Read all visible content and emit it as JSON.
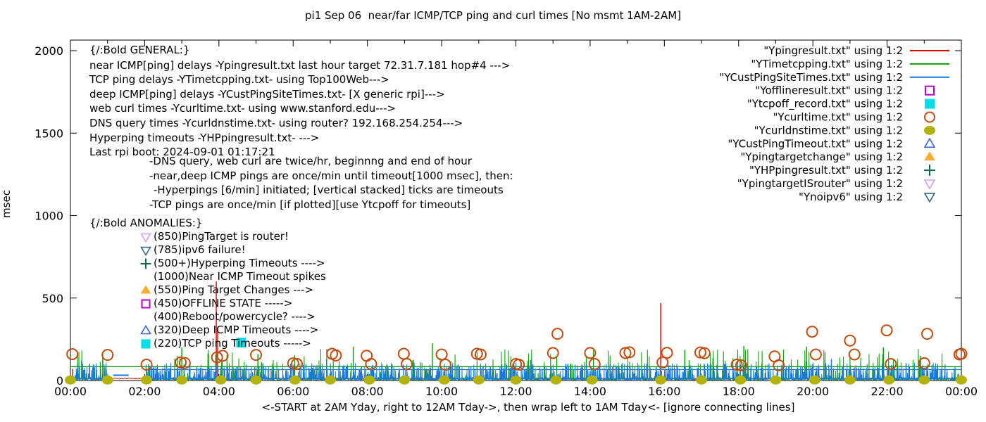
{
  "title": "pi1 Sep 06  near/far ICMP/TCP ping and curl times [No msmt 1AM-2AM]",
  "axes": {
    "ylabel": "msec",
    "xlabel": "<-START at 2AM Yday, right to 12AM Tday->, then wrap left to 1AM Tday<- [ignore connecting lines]",
    "yticks": [
      "0",
      "500",
      "1000",
      "1500",
      "2000"
    ],
    "xticks": [
      "00:00",
      "02:00",
      "04:00",
      "06:00",
      "08:00",
      "10:00",
      "12:00",
      "14:00",
      "16:00",
      "18:00",
      "20:00",
      "22:00",
      "00:00"
    ]
  },
  "legend": {
    "items": [
      {
        "label": "\"Ypingresult.txt\" using 1:2",
        "sample": "line",
        "color": "#e00000"
      },
      {
        "label": "\"YTimetcpping.txt\" using 1:2",
        "sample": "line",
        "color": "#00a000"
      },
      {
        "label": "\"YCustPingSiteTimes.txt\" using 1:2",
        "sample": "line",
        "color": "#1778dd"
      },
      {
        "label": "\"Yofflineresult.txt\" using 1:2",
        "sample": "open-square",
        "color": "#bb00cc"
      },
      {
        "label": "\"Ytcpoff_record.txt\" using 1:2",
        "sample": "filled-square",
        "color": "#00dfe8"
      },
      {
        "label": "\"Ycurltime.txt\" using 1:2",
        "sample": "open-circle",
        "color": "#c24c0e"
      },
      {
        "label": "\"Ycurldnstime.txt\" using 1:2",
        "sample": "filled-dot",
        "color": "#b2b20a"
      },
      {
        "label": "\"YCustPingTimeout.txt\" using 1:2",
        "sample": "open-triangle-up",
        "color": "#3c64c8"
      },
      {
        "label": "\"Ypingtargetchange\" using 1:2",
        "sample": "filled-triangle-up",
        "color": "#fcae32"
      },
      {
        "label": "\"YHPpingresult.txt\" using 1:2",
        "sample": "plus",
        "color": "#0c6b4c"
      },
      {
        "label": "\"YpingtargetISrouter\" using 1:2",
        "sample": "open-triangle-down",
        "color": "#cba2f2"
      },
      {
        "label": "\"Ynoipv6\" using 1:2",
        "sample": "open-triangle-down",
        "color": "#32657a"
      }
    ]
  },
  "general_block": {
    "heading": "{/:Bold GENERAL:}",
    "lines": [
      "near ICMP[ping] delays -Ypingresult.txt last hour target 72.31.7.181 hop#4 --->",
      "TCP ping delays -YTimetcpping.txt- using Top100Web--->",
      "deep ICMP[ping] delays -YCustPingSiteTimes.txt- [X generic rpi]--->",
      "web curl times -Ycurltime.txt- using www.stanford.edu--->",
      "DNS query times -Ycurldnstime.txt- using router? 192.168.254.254--->",
      "Hyperping timeouts -YHPpingresult.txt- --->",
      "Last rpi boot: 2024-09-01 01:17:21"
    ],
    "indented_lines": [
      "-DNS query, web curl are twice/hr, beginnng and end of hour",
      "-near,deep ICMP pings are once/min until timeout[1000 msec], then:",
      "-Hyperpings [6/min] initiated; [vertical stacked] ticks are timeouts",
      "-TCP pings are once/min [if plotted][use Ytcpoff for timeouts]"
    ]
  },
  "anomalies_block": {
    "heading": "{/:Bold ANOMALIES:}",
    "rows": [
      {
        "marker": "open-triangle-down",
        "color": "#cba2f2",
        "label": "(850)PingTarget is router!"
      },
      {
        "marker": "open-triangle-down",
        "color": "#32657a",
        "label": "(785)ipv6 failure!"
      },
      {
        "marker": "plus",
        "color": "#0c6b4c",
        "label": "(500+)Hyperping Timeouts ---->"
      },
      {
        "marker": "none",
        "color": "",
        "label": "(1000)Near ICMP Timeout spikes"
      },
      {
        "marker": "filled-triangle-up",
        "color": "#fcae32",
        "label": "(550)Ping Target Changes --->"
      },
      {
        "marker": "open-square",
        "color": "#bb00cc",
        "label": "(450)OFFLINE STATE ----->"
      },
      {
        "marker": "none",
        "color": "",
        "label": "(400)Reboot/powercycle? ---->"
      },
      {
        "marker": "open-triangle-up",
        "color": "#3c64c8",
        "label": "(320)Deep ICMP Timeouts ---->"
      },
      {
        "marker": "filled-square",
        "color": "#00dfe8",
        "label": "(220)TCP ping Timeouts ----->"
      }
    ]
  },
  "chart_data": {
    "type": "line+scatter",
    "x_unit": "hours",
    "x_range": [
      0,
      24
    ],
    "y_range": [
      0,
      2000
    ],
    "grid": false,
    "legend_position": "top-right",
    "no_measurement_gap_hours": [
      1.03,
      2.02
    ],
    "series": [
      {
        "name": "Ypingresult.txt",
        "style": "line",
        "color": "#e00000",
        "base_level_msec": 10,
        "noise_msec": 5,
        "spike_chance": 0.0,
        "spike_max_msec": 0,
        "segments": [
          [
            0,
            24
          ]
        ],
        "spikes": [
          [
            0.06,
            70
          ],
          [
            3.93,
            600
          ],
          [
            3.965,
            310
          ],
          [
            15.9,
            470
          ]
        ]
      },
      {
        "name": "YTimetcpping.txt",
        "style": "line",
        "color": "#00a000",
        "base_level_msec": 3,
        "noise_msec": 9,
        "spike_chance": 0.13,
        "spike_max_msec": 175,
        "segments": [
          [
            0,
            1.03
          ],
          [
            2.02,
            24
          ]
        ],
        "level_line": {
          "msec": 84,
          "span": [
            0,
            24
          ]
        },
        "spikes": [
          [
            0.87,
            170
          ],
          [
            3.0,
            200
          ],
          [
            5.05,
            160
          ],
          [
            7.62,
            205
          ],
          [
            9.75,
            225
          ],
          [
            13.1,
            150
          ],
          [
            16.55,
            185
          ],
          [
            18.14,
            210
          ],
          [
            19.83,
            205
          ],
          [
            21.9,
            200
          ],
          [
            22.9,
            150
          ]
        ]
      },
      {
        "name": "YCustPingSiteTimes.txt",
        "style": "line",
        "color": "#1778dd",
        "base_level_msec": 4,
        "noise_msec": 12,
        "spike_chance": 0.38,
        "spike_max_msec": 90,
        "segments": [
          [
            0,
            1.03
          ],
          [
            2.02,
            24
          ]
        ],
        "level_line": {
          "msec": 66,
          "span": [
            2.02,
            24
          ]
        },
        "gap_flat_segment": {
          "msec": 32,
          "span": [
            1.15,
            1.57
          ]
        },
        "spikes": [
          [
            0.3,
            120
          ],
          [
            6.9,
            130
          ],
          [
            12.4,
            125
          ],
          [
            20.5,
            130
          ]
        ]
      }
    ],
    "scatter": [
      {
        "name": "Ycurltime.txt",
        "marker": "open-circle",
        "color": "#c24c0e",
        "points": [
          [
            0.05,
            160
          ],
          [
            1.0,
            155
          ],
          [
            2.05,
            96
          ],
          [
            2.97,
            110
          ],
          [
            3.08,
            106
          ],
          [
            3.95,
            140
          ],
          [
            4.1,
            150
          ],
          [
            5.0,
            155
          ],
          [
            6.0,
            104
          ],
          [
            6.1,
            100
          ],
          [
            7.05,
            162
          ],
          [
            7.15,
            152
          ],
          [
            7.98,
            150
          ],
          [
            8.1,
            100
          ],
          [
            8.98,
            162
          ],
          [
            9.06,
            100
          ],
          [
            10.0,
            158
          ],
          [
            10.1,
            96
          ],
          [
            10.95,
            162
          ],
          [
            11.05,
            158
          ],
          [
            12.0,
            100
          ],
          [
            12.08,
            96
          ],
          [
            13.0,
            167
          ],
          [
            13.12,
            283
          ],
          [
            14.0,
            167
          ],
          [
            14.12,
            100
          ],
          [
            14.95,
            167
          ],
          [
            15.06,
            171
          ],
          [
            15.95,
            110
          ],
          [
            16.07,
            168
          ],
          [
            16.97,
            170
          ],
          [
            17.08,
            166
          ],
          [
            17.95,
            96
          ],
          [
            18.07,
            92
          ],
          [
            18.97,
            146
          ],
          [
            19.08,
            92
          ],
          [
            19.98,
            296
          ],
          [
            20.08,
            158
          ],
          [
            21.0,
            242
          ],
          [
            21.12,
            158
          ],
          [
            21.99,
            304
          ],
          [
            22.1,
            100
          ],
          [
            23.0,
            105
          ],
          [
            23.08,
            283
          ],
          [
            23.95,
            158
          ],
          [
            24.0,
            162
          ]
        ]
      },
      {
        "name": "Ycurldnstime.txt",
        "marker": "filled-dot",
        "color": "#b2b20a",
        "points": [
          [
            0,
            3
          ],
          [
            1,
            3
          ],
          [
            2.05,
            3
          ],
          [
            3,
            3
          ],
          [
            4.05,
            3
          ],
          [
            5,
            3
          ],
          [
            6.05,
            3
          ],
          [
            7,
            3
          ],
          [
            8.05,
            3
          ],
          [
            9,
            3
          ],
          [
            10.07,
            3
          ],
          [
            11,
            3
          ],
          [
            12,
            3
          ],
          [
            13.08,
            3
          ],
          [
            14.05,
            3
          ],
          [
            15.9,
            3
          ],
          [
            17,
            3
          ],
          [
            18.05,
            3
          ],
          [
            19,
            3
          ],
          [
            20.05,
            3
          ],
          [
            21,
            3
          ],
          [
            22.05,
            3
          ],
          [
            23,
            3
          ],
          [
            24,
            3
          ]
        ]
      },
      {
        "name": "Ytcpoff_record.txt",
        "marker": "filled-square",
        "color": "#00dfe8",
        "points": [
          [
            4.6,
            230
          ]
        ]
      }
    ]
  }
}
